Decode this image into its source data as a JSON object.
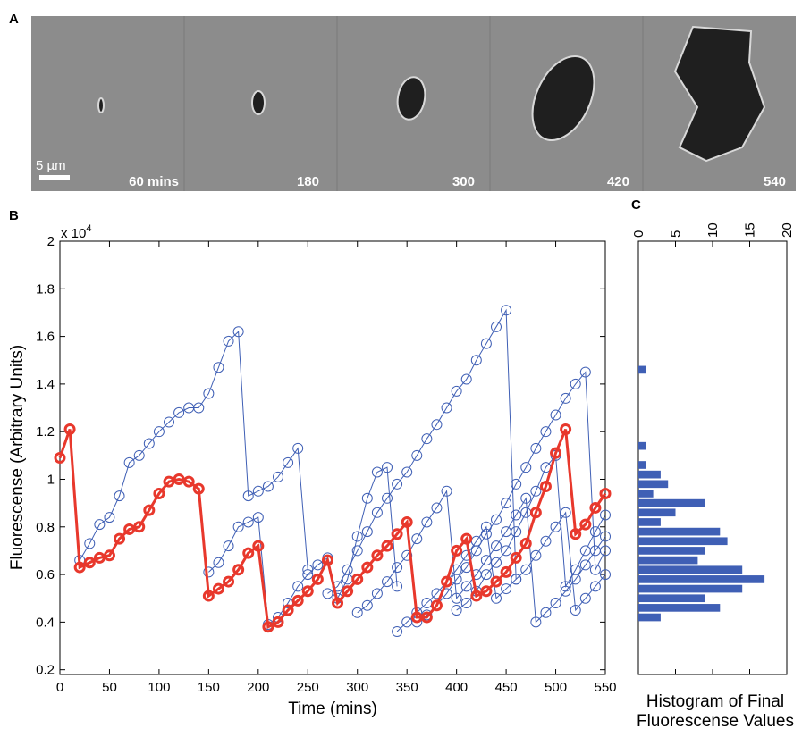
{
  "panel_a": {
    "label": "A",
    "scale_bar": "5 µm",
    "frames": [
      "60 mins",
      "180",
      "300",
      "420",
      "540"
    ]
  },
  "chart_data": [
    {
      "type": "line",
      "panel_label": "B",
      "xlabel": "Time (mins)",
      "ylabel": "Fluorescense (Arbitrary Units)",
      "y_multiplier": {
        "base": "x 10",
        "exponent": "4"
      },
      "xlim": [
        0,
        550
      ],
      "ylim": [
        0.18,
        2
      ],
      "xticks": [
        0,
        50,
        100,
        150,
        200,
        250,
        300,
        350,
        400,
        450,
        500,
        550
      ],
      "yticks": [
        0.2,
        0.4,
        0.6,
        0.8,
        1,
        1.2,
        1.4,
        1.6,
        1.8,
        2
      ],
      "series": [
        {
          "color": "#3f5fb5",
          "x": [
            20,
            30,
            40,
            50,
            60,
            70,
            80,
            90,
            100,
            110,
            120,
            130,
            140,
            150,
            160,
            170,
            180,
            190,
            200,
            210,
            220,
            230,
            240,
            250
          ],
          "values": [
            0.66,
            0.73,
            0.81,
            0.84,
            0.93,
            1.07,
            1.1,
            1.15,
            1.2,
            1.24,
            1.28,
            1.3,
            1.3,
            1.36,
            1.47,
            1.58,
            1.62,
            0.93,
            0.95,
            0.97,
            1.01,
            1.07,
            1.13,
            0.62
          ]
        },
        {
          "color": "#3f5fb5",
          "x": [
            150,
            160,
            170,
            180,
            190,
            200,
            210,
            220,
            230,
            240,
            250,
            260,
            270,
            280,
            290,
            300,
            310,
            320,
            330,
            340
          ],
          "values": [
            0.61,
            0.65,
            0.72,
            0.8,
            0.82,
            0.84,
            0.39,
            0.42,
            0.48,
            0.55,
            0.6,
            0.64,
            0.67,
            0.5,
            0.58,
            0.76,
            0.92,
            1.03,
            1.05,
            0.55
          ]
        },
        {
          "color": "#3f5fb5",
          "x": [
            270,
            280,
            290,
            300,
            310,
            320,
            330,
            340,
            350,
            360,
            370,
            380,
            390,
            400,
            410,
            420,
            430,
            440,
            450,
            460
          ],
          "values": [
            0.52,
            0.55,
            0.62,
            0.7,
            0.78,
            0.86,
            0.92,
            0.98,
            1.03,
            1.1,
            1.17,
            1.23,
            1.3,
            1.37,
            1.42,
            1.5,
            1.57,
            1.64,
            1.71,
            0.58
          ]
        },
        {
          "color": "#3f5fb5",
          "x": [
            360,
            370,
            380,
            390,
            400,
            410,
            420,
            430,
            440,
            450,
            460,
            470,
            480,
            490,
            500,
            510,
            520,
            530,
            540,
            550
          ],
          "values": [
            0.4,
            0.43,
            0.47,
            0.52,
            0.58,
            0.63,
            0.7,
            0.77,
            0.83,
            0.9,
            0.98,
            1.05,
            1.13,
            1.2,
            1.27,
            1.34,
            1.4,
            1.45,
            0.62,
            0.7
          ]
        },
        {
          "color": "#3f5fb5",
          "x": [
            400,
            410,
            420,
            430,
            440,
            450,
            460,
            470,
            480,
            490,
            500,
            510,
            520,
            530,
            540,
            550
          ],
          "values": [
            0.45,
            0.48,
            0.53,
            0.6,
            0.65,
            0.7,
            0.78,
            0.86,
            0.95,
            1.05,
            1.1,
            0.55,
            0.62,
            0.7,
            0.78,
            0.85
          ]
        },
        {
          "color": "#3f5fb5",
          "x": [
            340,
            350,
            360,
            370,
            380,
            390,
            400,
            410,
            420,
            430,
            440,
            450,
            460,
            470,
            480,
            490,
            500,
            510,
            520,
            530,
            540,
            550
          ],
          "values": [
            0.36,
            0.4,
            0.44,
            0.48,
            0.52,
            0.57,
            0.62,
            0.68,
            0.74,
            0.8,
            0.5,
            0.54,
            0.58,
            0.62,
            0.68,
            0.74,
            0.8,
            0.86,
            0.45,
            0.5,
            0.55,
            0.6
          ]
        },
        {
          "color": "#3f5fb5",
          "x": [
            300,
            310,
            320,
            330,
            340,
            350,
            360,
            370,
            380,
            390,
            400,
            410,
            420,
            430,
            440,
            450,
            460,
            470,
            480,
            490,
            500,
            510,
            520,
            530,
            540,
            550
          ],
          "values": [
            0.44,
            0.47,
            0.52,
            0.57,
            0.63,
            0.68,
            0.75,
            0.82,
            0.88,
            0.95,
            0.5,
            0.55,
            0.6,
            0.66,
            0.72,
            0.78,
            0.85,
            0.92,
            0.4,
            0.44,
            0.48,
            0.53,
            0.58,
            0.64,
            0.7,
            0.76
          ]
        },
        {
          "color": "#e8382c",
          "highlight": true,
          "x": [
            0,
            10,
            20,
            30,
            40,
            50,
            60,
            70,
            80,
            90,
            100,
            110,
            120,
            130,
            140,
            150,
            160,
            170,
            180,
            190,
            200,
            210,
            220,
            230,
            240,
            250,
            260,
            270,
            280,
            290,
            300,
            310,
            320,
            330,
            340,
            350,
            360,
            370,
            380,
            390,
            400,
            410,
            420,
            430,
            440,
            450,
            460,
            470,
            480,
            490,
            500,
            510,
            520,
            530,
            540,
            550
          ],
          "values": [
            1.09,
            1.21,
            0.63,
            0.65,
            0.67,
            0.68,
            0.75,
            0.79,
            0.8,
            0.87,
            0.94,
            0.99,
            1.0,
            0.99,
            0.96,
            0.51,
            0.54,
            0.57,
            0.62,
            0.69,
            0.72,
            0.38,
            0.4,
            0.45,
            0.49,
            0.53,
            0.58,
            0.66,
            0.48,
            0.53,
            0.58,
            0.63,
            0.68,
            0.72,
            0.77,
            0.82,
            0.42,
            0.42,
            0.47,
            0.57,
            0.7,
            0.75,
            0.51,
            0.53,
            0.57,
            0.61,
            0.67,
            0.73,
            0.86,
            0.97,
            1.11,
            1.21,
            0.77,
            0.81,
            0.88,
            0.94
          ]
        }
      ]
    },
    {
      "type": "histogram",
      "panel_label": "C",
      "orientation": "horizontal",
      "xlabel": [
        "Histogram of Final",
        "Fluorescense Values"
      ],
      "color": "#3f5fb5",
      "xlim": [
        0,
        20
      ],
      "xticks": [
        0,
        5,
        10,
        15,
        20
      ],
      "ylim": [
        0.18,
        2
      ],
      "bins": [
        0.4,
        0.44,
        0.48,
        0.52,
        0.56,
        0.6,
        0.64,
        0.68,
        0.72,
        0.76,
        0.8,
        0.84,
        0.88,
        0.92,
        0.96,
        1.0,
        1.04,
        1.08,
        1.12,
        1.16,
        1.2,
        1.24,
        1.28,
        1.32,
        1.36,
        1.4,
        1.44,
        1.48
      ],
      "counts": [
        3,
        11,
        9,
        14,
        17,
        14,
        8,
        9,
        12,
        11,
        3,
        5,
        9,
        2,
        4,
        3,
        1,
        0,
        1,
        0,
        0,
        0,
        0,
        0,
        0,
        0,
        1
      ]
    }
  ]
}
